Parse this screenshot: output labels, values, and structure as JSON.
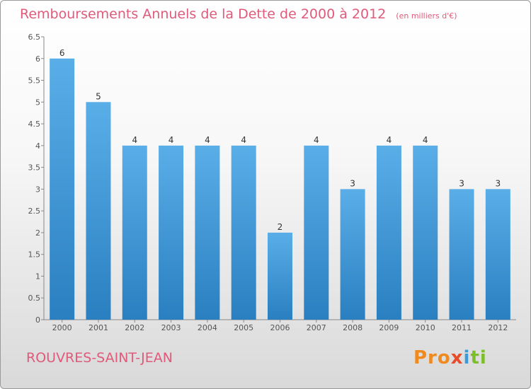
{
  "header": {
    "title": "Remboursements Annuels de la Dette de 2000 à 2012",
    "subtitle": "(en milliers d'€)"
  },
  "footer": {
    "place": "ROUVRES-SAINT-JEAN",
    "logo": [
      "Pro",
      "x",
      "i",
      "ti"
    ]
  },
  "colors": {
    "bar_top": "#5aaee8",
    "bar_bottom": "#2a7fc0",
    "title": "#e05a7a"
  },
  "chart_data": {
    "type": "bar",
    "title": "Remboursements Annuels de la Dette de 2000 à 2012",
    "subtitle": "(en milliers d'€)",
    "categories": [
      "2000",
      "2001",
      "2002",
      "2003",
      "2004",
      "2005",
      "2006",
      "2007",
      "2008",
      "2009",
      "2010",
      "2011",
      "2012"
    ],
    "values": [
      6,
      5,
      4,
      4,
      4,
      4,
      2,
      4,
      3,
      4,
      4,
      3,
      3
    ],
    "value_labels": [
      "6",
      "5",
      "4",
      "4",
      "4",
      "4",
      "2",
      "4",
      "3",
      "4",
      "4",
      "3",
      "3"
    ],
    "yticks": [
      "0",
      "0.5",
      "1",
      "1.5",
      "2",
      "2.5",
      "3",
      "3.5",
      "4",
      "4.5",
      "5",
      "5.5",
      "6",
      "6.5"
    ],
    "ylim": [
      0,
      6.5
    ],
    "grid": false
  }
}
